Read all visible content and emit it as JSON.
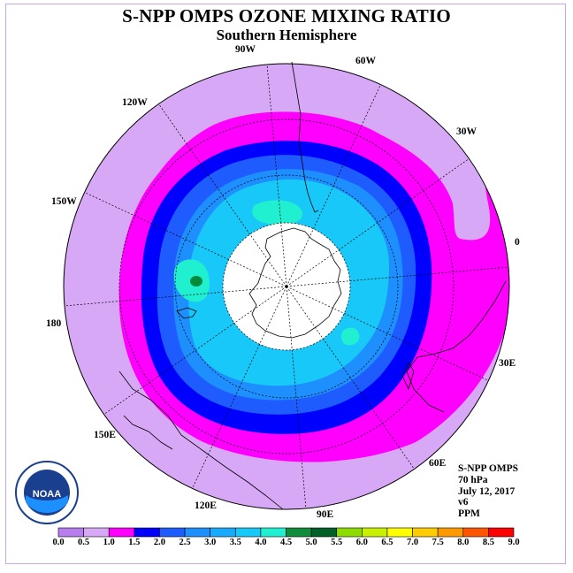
{
  "title": "S-NPP OMPS OZONE MIXING RATIO",
  "subtitle": "Southern Hemisphere",
  "longitude_labels": [
    "90W",
    "60W",
    "30W",
    "0",
    "30E",
    "60E",
    "90E",
    "120E",
    "150E",
    "180",
    "150W",
    "120W"
  ],
  "info_lines": [
    "S-NPP OMPS",
    "70 hPa",
    "July 12, 2017",
    "v6",
    "PPM"
  ],
  "logo": {
    "text": "NOAA",
    "icon": "noaa-logo"
  },
  "colors": {
    "background_ppm_0_5_1_0": "#d7a8f5",
    "ring_1_0_1_5": "#ff00ff",
    "ring_1_5_2_0": "#0000ff",
    "core_2_0_2_5": "#1e5cff",
    "core_2_5_3_0": "#1e8fff",
    "core_3_0_3_5": "#18c8f8",
    "core_3_5_4_0": "#20f0d0",
    "peak_4_0_4_5": "#008c3a",
    "no_data": "#ffffff",
    "coastline": "#000000"
  },
  "colorbar": {
    "ticks": [
      "0.0",
      "0.5",
      "1.0",
      "1.5",
      "2.0",
      "2.5",
      "3.0",
      "3.5",
      "4.0",
      "4.5",
      "5.0",
      "5.5",
      "6.0",
      "6.5",
      "7.0",
      "7.5",
      "8.0",
      "8.5",
      "9.0"
    ],
    "colors": [
      "#b87ef0",
      "#d7a8f5",
      "#ff00ff",
      "#0000ff",
      "#1e5cff",
      "#1e8fff",
      "#18aaff",
      "#18c8f8",
      "#20f0d0",
      "#108c3a",
      "#006028",
      "#8cdc00",
      "#c8f000",
      "#ffff00",
      "#ffcc00",
      "#ff9900",
      "#ff5500",
      "#ff0000",
      "#8b5a3c"
    ]
  }
}
